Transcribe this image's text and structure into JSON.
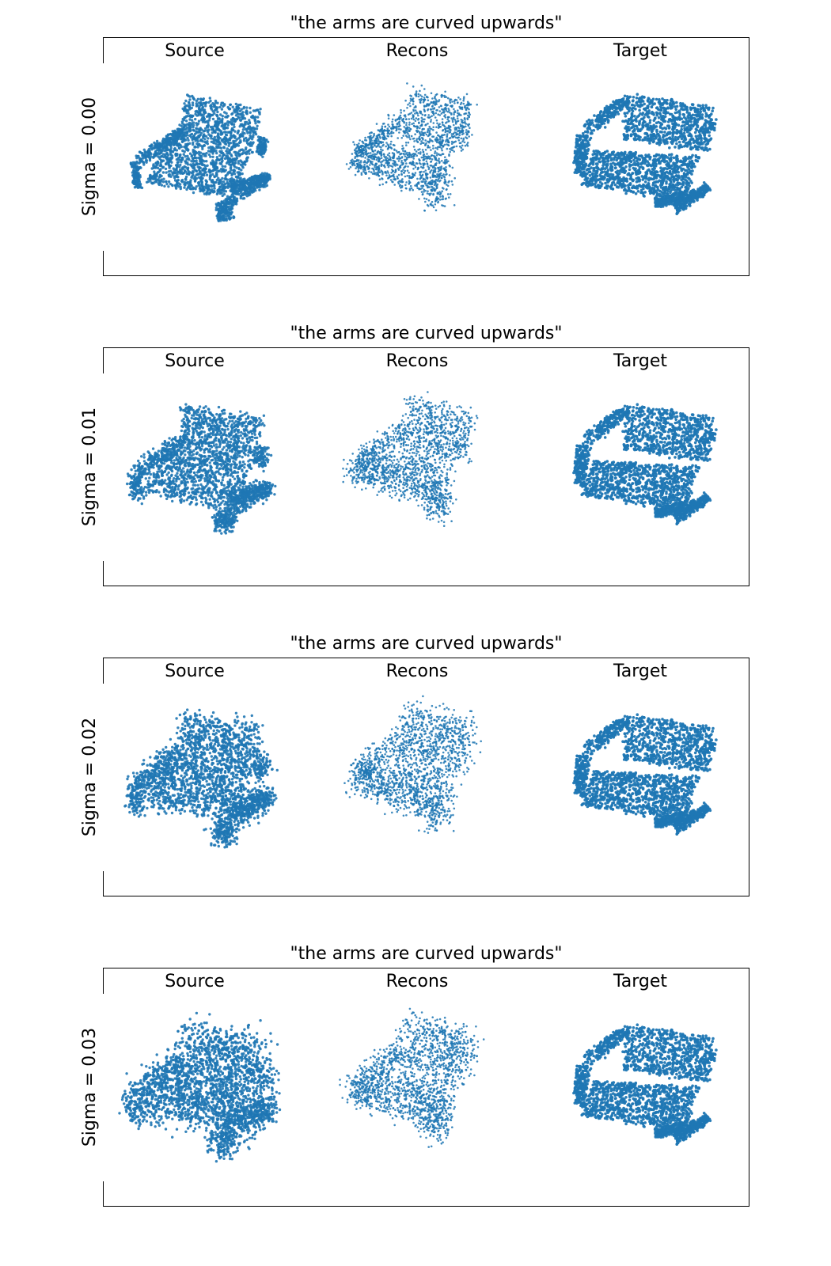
{
  "accent_color": "#1f77b4",
  "column_labels": [
    "Source",
    "Recons",
    "Target"
  ],
  "panels": [
    {
      "title": "\"the arms are curved upwards\"",
      "row_label": "Sigma = 0.00",
      "source_noise": 0.0,
      "recon_noise": 0.0
    },
    {
      "title": "\"the arms are curved upwards\"",
      "row_label": "Sigma = 0.01",
      "source_noise": 0.01,
      "recon_noise": 0.01
    },
    {
      "title": "\"the arms are curved upwards\"",
      "row_label": "Sigma = 0.02",
      "source_noise": 0.02,
      "recon_noise": 0.02
    },
    {
      "title": "\"the arms are curved upwards\"",
      "row_label": "Sigma = 0.03",
      "source_noise": 0.03,
      "recon_noise": 0.03
    }
  ]
}
